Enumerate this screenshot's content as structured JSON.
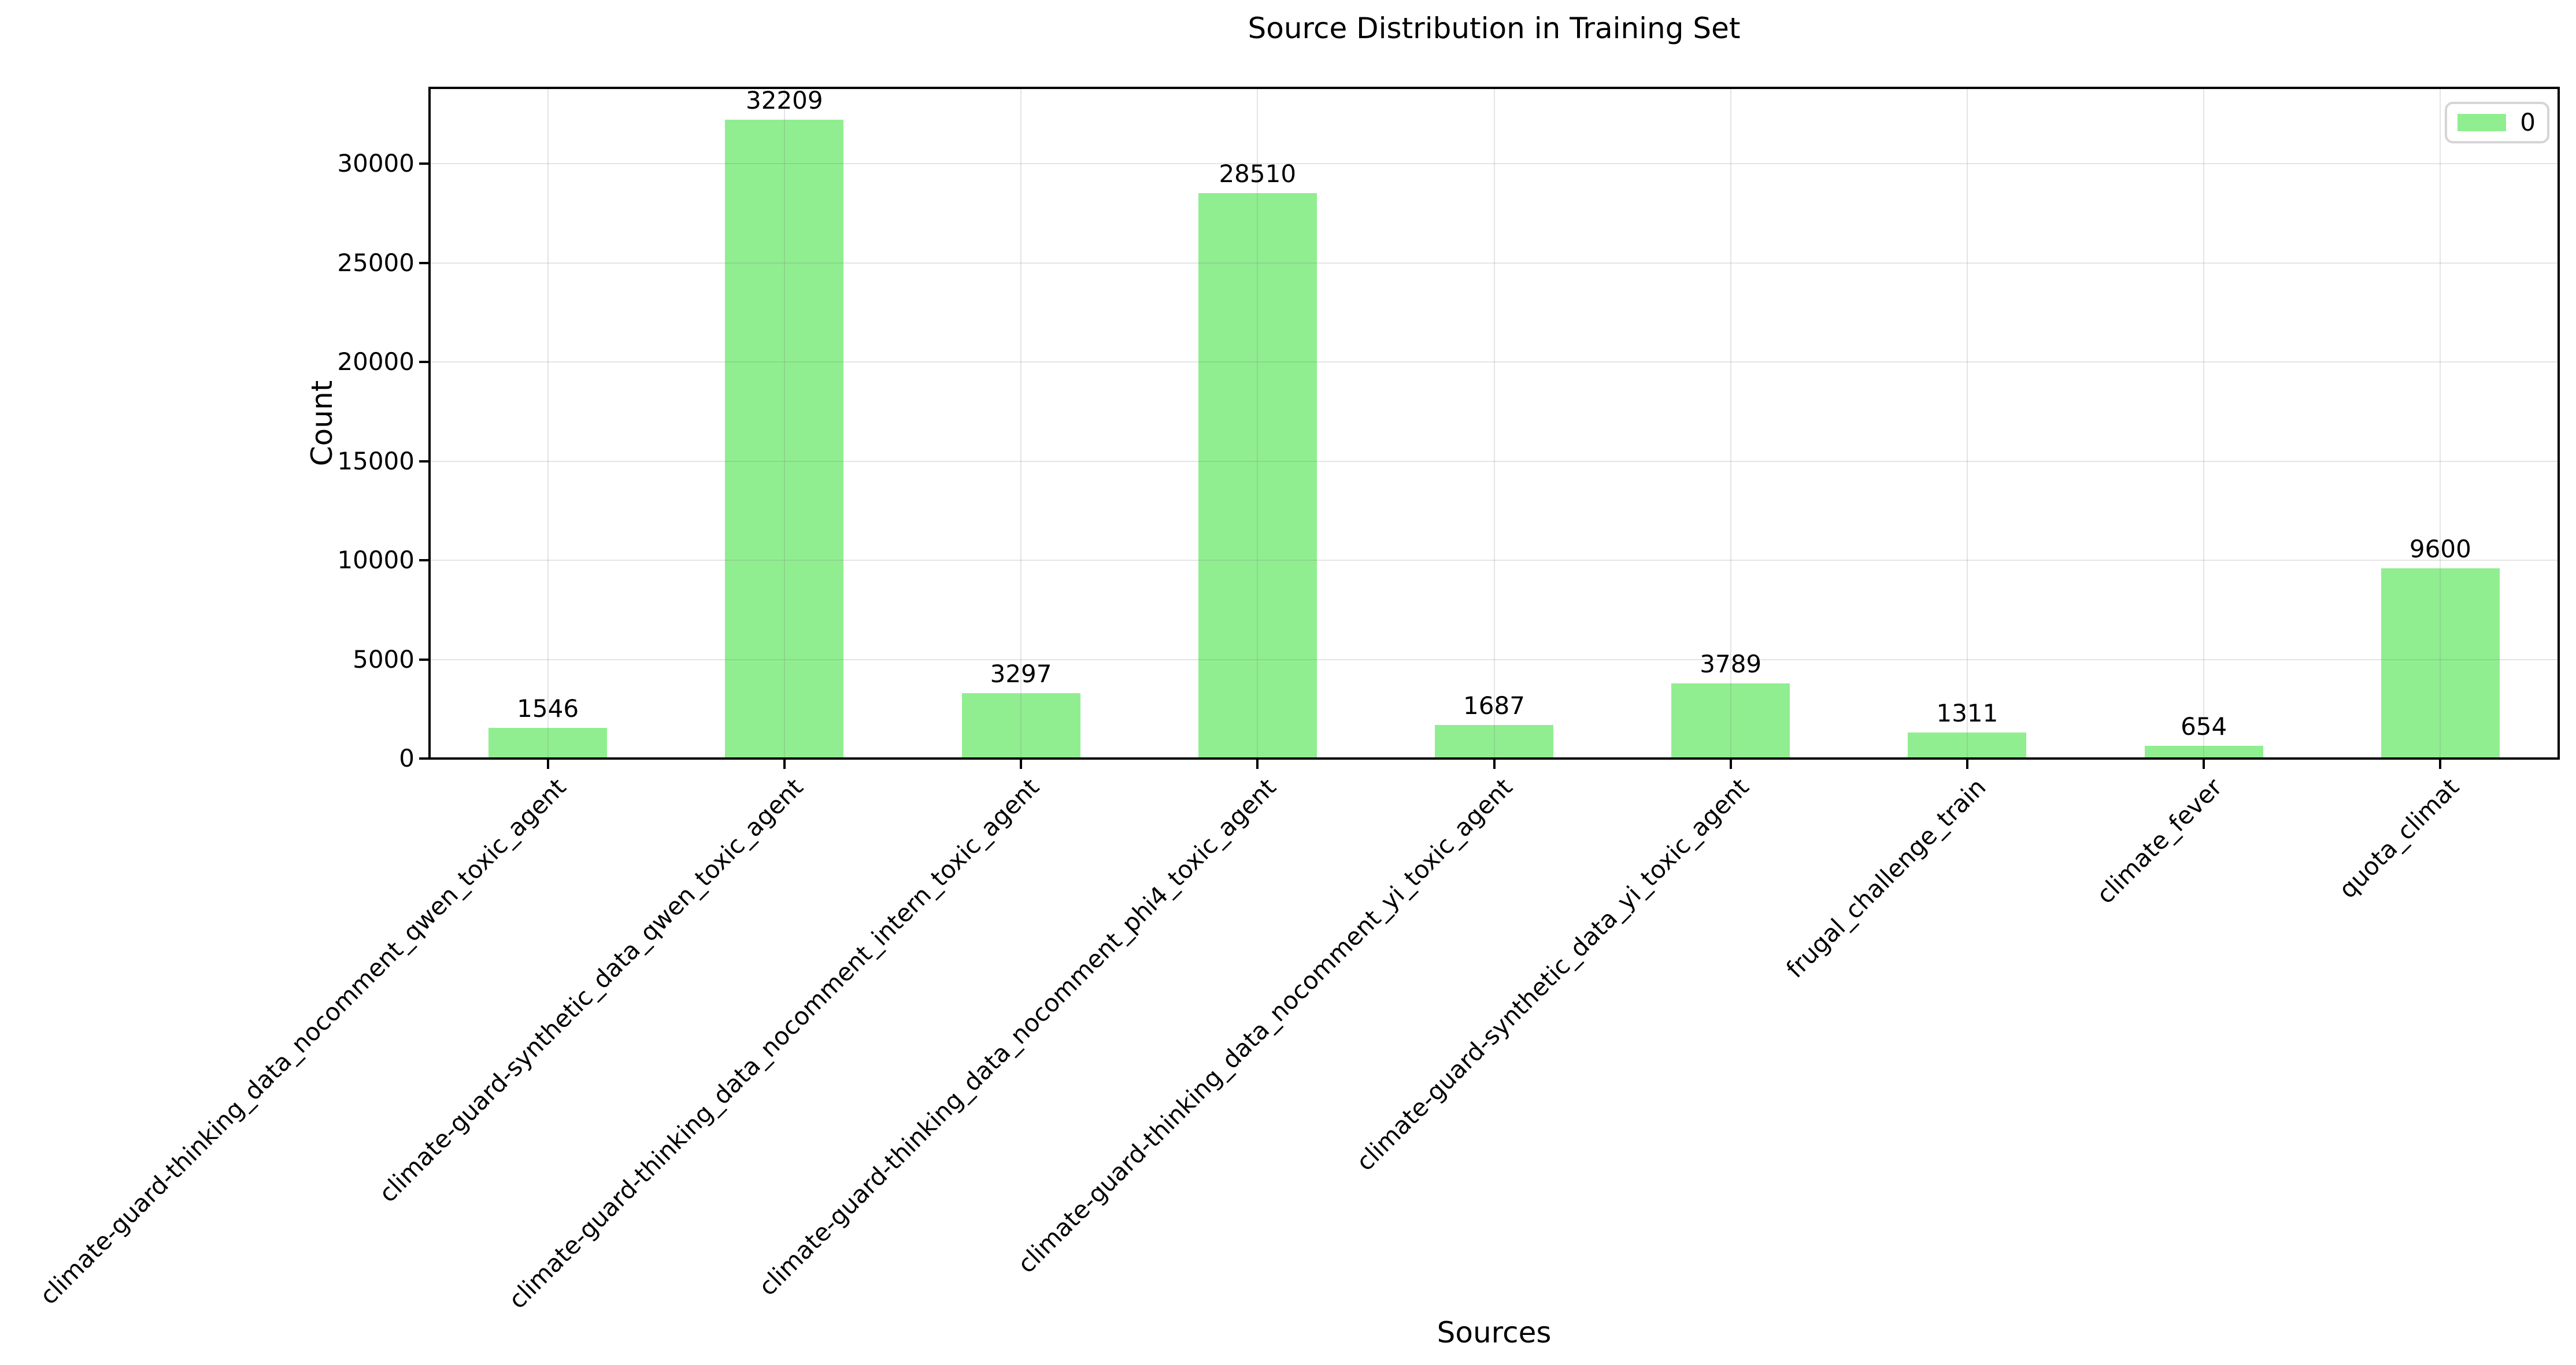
{
  "chart_data": {
    "type": "bar",
    "title": "Source Distribution in Training Set",
    "xlabel": "Sources",
    "ylabel": "Count",
    "categories": [
      "climate-guard-thinking_data_nocomment_qwen_toxic_agent",
      "climate-guard-synthetic_data_qwen_toxic_agent",
      "climate-guard-thinking_data_nocomment_intern_toxic_agent",
      "climate-guard-thinking_data_nocomment_phi4_toxic_agent",
      "climate-guard-thinking_data_nocomment_yi_toxic_agent",
      "climate-guard-synthetic_data_yi_toxic_agent",
      "frugal_challenge_train",
      "climate_fever",
      "quota_climat"
    ],
    "values": [
      1546,
      32209,
      3297,
      28510,
      1687,
      3789,
      1311,
      654,
      9600
    ],
    "bar_color": "#90EE90",
    "legend": {
      "label": "0",
      "position": "upper right"
    },
    "ylim": [
      0,
      33820
    ],
    "yticks": [
      0,
      5000,
      10000,
      15000,
      20000,
      25000,
      30000
    ],
    "grid": true,
    "x_tick_rotation": 45
  }
}
